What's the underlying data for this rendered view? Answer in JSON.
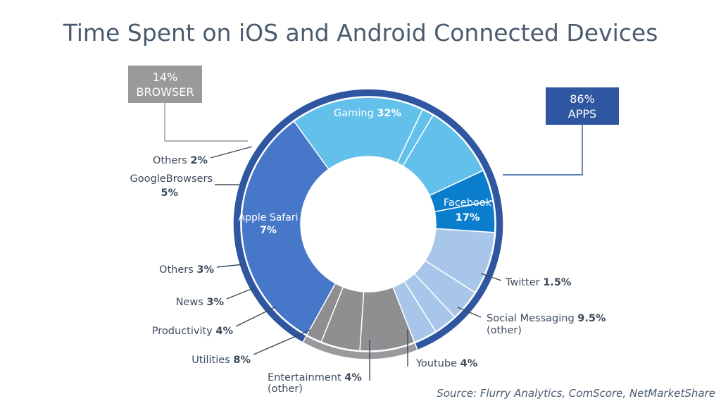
{
  "chart_data": {
    "type": "pie",
    "title": "Time Spent on iOS and Android Connected Devices",
    "source": "Source: Flurry Analytics, ComScore, NetMarketShare",
    "groups": [
      {
        "line1": "86%",
        "line2": "APPS",
        "value": 86,
        "color": "#2f56a0"
      },
      {
        "line1": "14%",
        "line2": "BROWSER",
        "value": 14,
        "color": "#9a9a9c"
      }
    ],
    "slices": [
      {
        "name": "Gaming",
        "pct_label": "32%",
        "value": 32,
        "color": "#4677c9",
        "group": "APPS"
      },
      {
        "name": "Facebook",
        "pct_label": "17%",
        "value": 17,
        "color": "#62c0ea",
        "group": "APPS"
      },
      {
        "name": "Twitter",
        "pct_label": "1.5%",
        "value": 1.5,
        "color": "#62c0ea",
        "group": "APPS"
      },
      {
        "name": "Social Messaging",
        "pct_label": "9.5%",
        "sub": "(other)",
        "value": 9.5,
        "color": "#62c0ea",
        "group": "APPS"
      },
      {
        "name": "Youtube",
        "pct_label": "4%",
        "value": 4,
        "color": "#0a7dcc",
        "group": "APPS"
      },
      {
        "name": "Entertainment",
        "pct_label": "4%",
        "sub": "(other)",
        "value": 4,
        "color": "#0a7dcc",
        "group": "APPS"
      },
      {
        "name": "Utilities",
        "pct_label": "8%",
        "value": 8,
        "color": "#a7c6ea",
        "group": "APPS"
      },
      {
        "name": "Productivity",
        "pct_label": "4%",
        "value": 4,
        "color": "#a7c6ea",
        "group": "APPS"
      },
      {
        "name": "News",
        "pct_label": "3%",
        "value": 3,
        "color": "#a7c6ea",
        "group": "APPS"
      },
      {
        "name": "Others",
        "pct_label": "3%",
        "value": 3,
        "color": "#a7c6ea",
        "group": "APPS"
      },
      {
        "name": "Apple Safari",
        "pct_label": "7%",
        "value": 7,
        "color": "#8f8f91",
        "group": "BROWSER"
      },
      {
        "name": "GoogleBrowsers",
        "pct_label": "5%",
        "value": 5,
        "color": "#8f8f91",
        "group": "BROWSER"
      },
      {
        "name": "Others",
        "pct_label": "2%",
        "value": 2,
        "color": "#8f8f91",
        "group": "BROWSER"
      }
    ]
  }
}
